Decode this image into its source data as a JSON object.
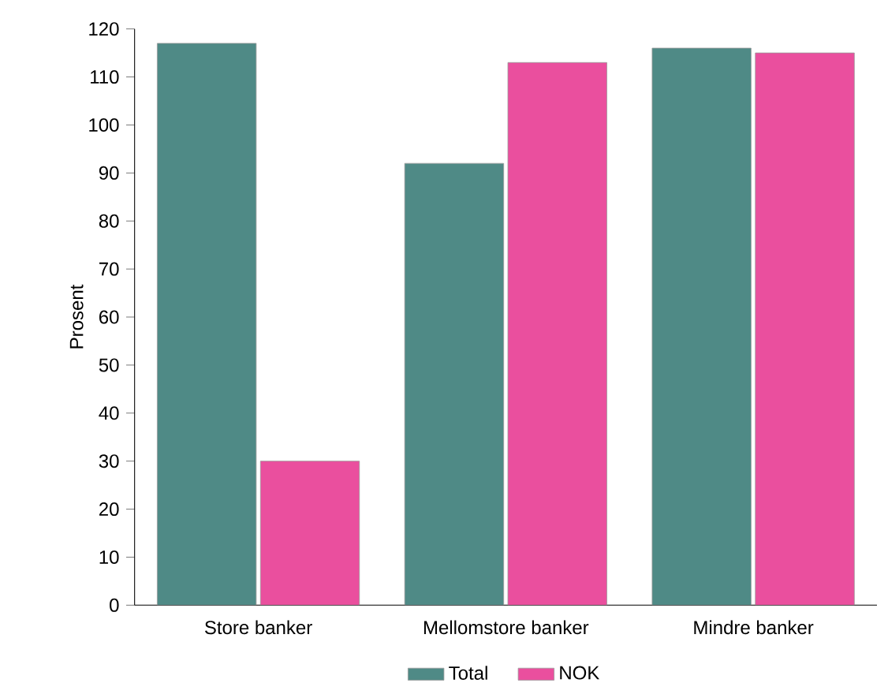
{
  "chart_data": {
    "type": "bar",
    "ylabel": "Prosent",
    "categories": [
      "Store banker",
      "Mellomstore banker",
      "Mindre banker"
    ],
    "series": [
      {
        "name": "Total",
        "color": "#4f8a86",
        "values": [
          117,
          92,
          116
        ]
      },
      {
        "name": "NOK",
        "color": "#ea4f9e",
        "values": [
          30,
          113,
          115
        ]
      }
    ],
    "ylim": [
      0,
      120
    ],
    "yticks": [
      0,
      10,
      20,
      30,
      40,
      50,
      60,
      70,
      80,
      90,
      100,
      110,
      120
    ],
    "grid": false,
    "legend": "bottom"
  }
}
